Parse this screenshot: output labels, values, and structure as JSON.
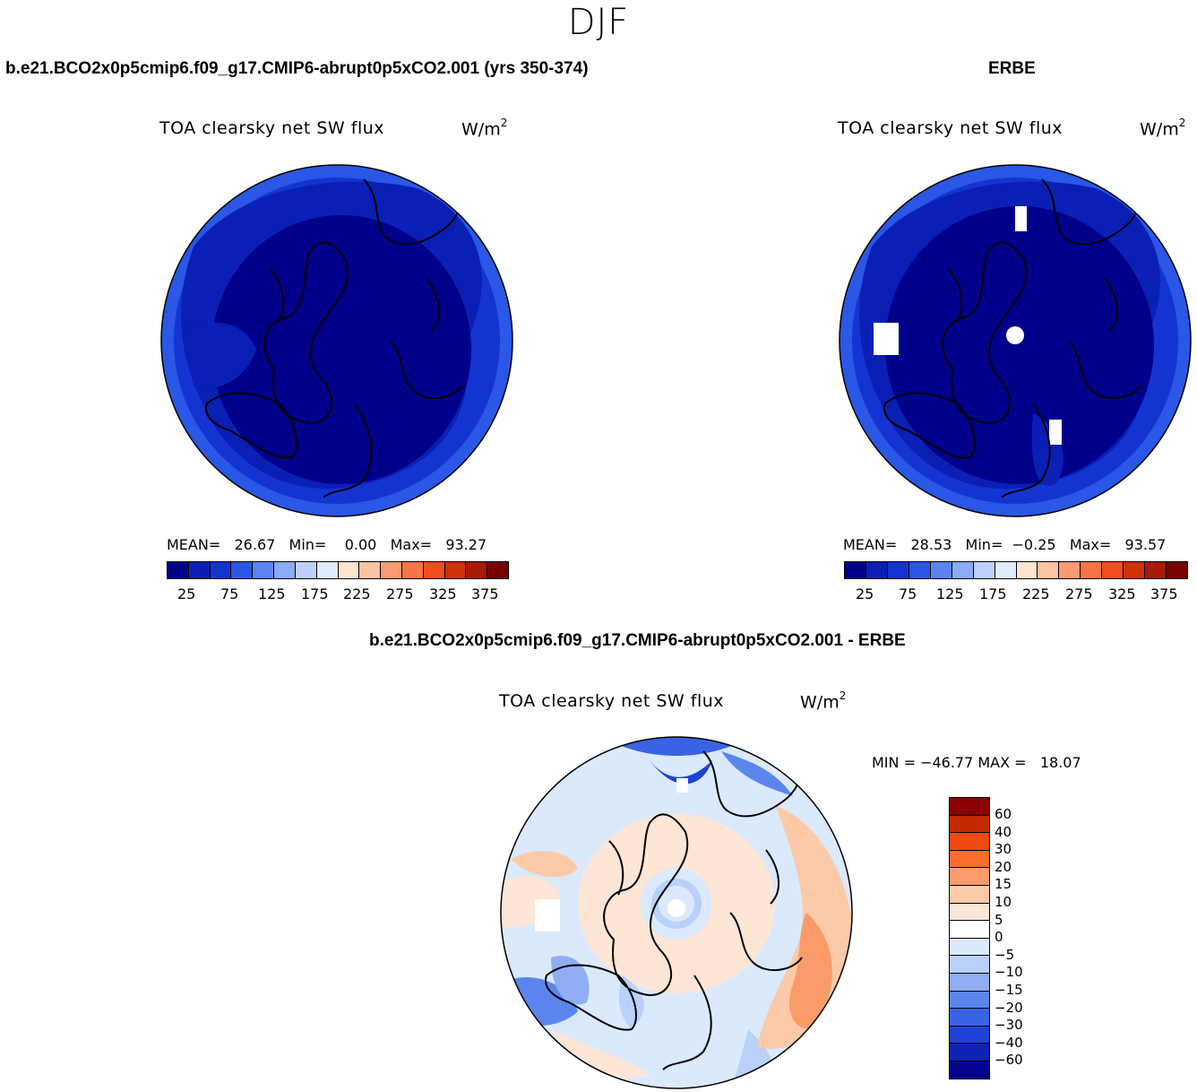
{
  "season": "DJF",
  "panel_left": {
    "case_title": "b.e21.BCO2x0p5cmip6.f09_g17.CMIP6-abrupt0p5xCO2.001 (yrs 350-374)",
    "var_title": "TOA clearsky net SW flux",
    "units": "W/m",
    "units_exp": "2",
    "stats": "MEAN=   26.67   Min=    0.00   Max=   93.27",
    "ticks": [
      "25",
      "75",
      "125",
      "175",
      "225",
      "275",
      "325",
      "375"
    ]
  },
  "panel_right": {
    "case_title": "ERBE",
    "var_title": "TOA clearsky net SW flux",
    "units": "W/m",
    "units_exp": "2",
    "stats": "MEAN=   28.53   Min=  −0.25   Max=   93.57",
    "ticks": [
      "25",
      "75",
      "125",
      "175",
      "225",
      "275",
      "325",
      "375"
    ]
  },
  "panel_diff": {
    "case_title": "b.e21.BCO2x0p5cmip6.f09_g17.CMIP6-abrupt0p5xCO2.001 - ERBE",
    "var_title": "TOA clearsky net SW flux",
    "units": "W/m",
    "units_exp": "2",
    "stats": "MIN = −46.77 MAX =   18.07",
    "levels": [
      "60",
      "40",
      "30",
      "20",
      "15",
      "10",
      "5",
      "0",
      "−5",
      "−10",
      "−15",
      "−20",
      "−30",
      "−40",
      "−60"
    ]
  },
  "colors": {
    "abs_scale": [
      "#00008b",
      "#0a1fb4",
      "#1434d2",
      "#2a57e6",
      "#5b84f0",
      "#8cabf7",
      "#bcd0fb",
      "#e1ebfe",
      "#fde5d2",
      "#fcc3a3",
      "#fa9b72",
      "#f77446",
      "#f04e1c",
      "#cf3108",
      "#a81a04",
      "#7a0000"
    ],
    "diff_scale": [
      "#8b0000",
      "#c32a00",
      "#f04a10",
      "#fb6d2c",
      "#fb9b6a",
      "#fccaa9",
      "#fde6d6",
      "#dbe9fd",
      "#b9d1fb",
      "#8faef6",
      "#5c86ee",
      "#3a63e4",
      "#1f42d6",
      "#0e22b3",
      "#03038c"
    ]
  }
}
